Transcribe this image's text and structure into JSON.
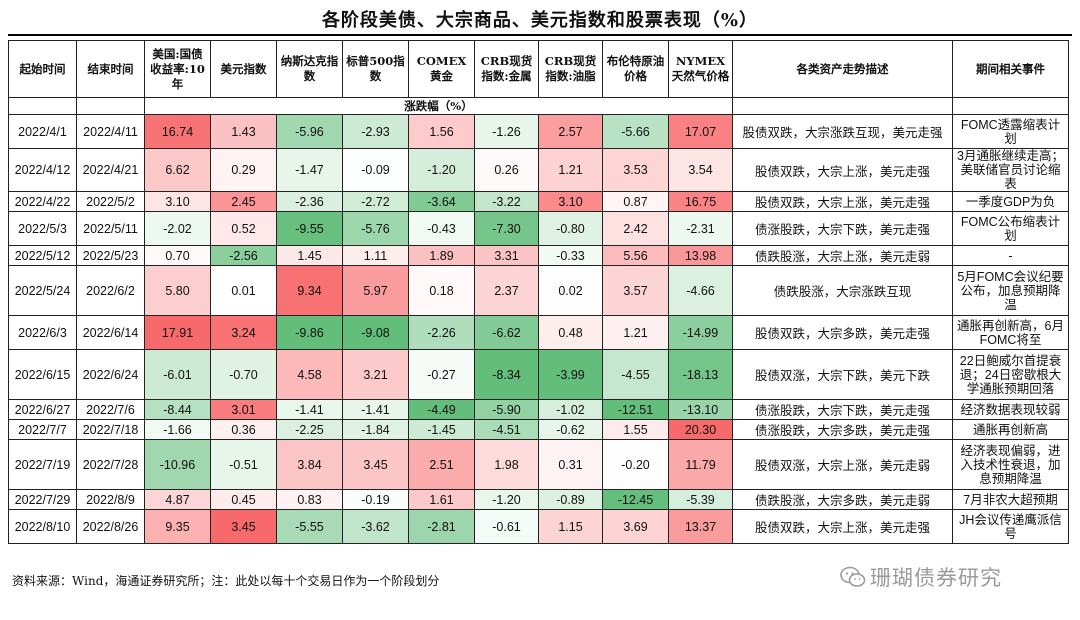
{
  "title": "各阶段美债、大宗商品、美元指数和股票表现（%）",
  "headers": [
    "起始时间",
    "结束时间",
    "美国:国债收益率:10年",
    "美元指数",
    "纳斯达克指数",
    "标普500指数",
    "COMEX黄金",
    "CRB现货指数:金属",
    "CRB现货指数:油脂",
    "布伦特原油价格",
    "NYMEX天然气价格",
    "各类资产走势描述",
    "期间相关事件"
  ],
  "unit_label": "涨跌幅（%）",
  "rows": [
    {
      "start": "2022/4/1",
      "end": "2022/4/11",
      "values": [
        "16.74",
        "1.43",
        "-5.96",
        "-2.93",
        "1.56",
        "-1.26",
        "2.57",
        "-5.66",
        "17.07"
      ],
      "desc": "股债双跌，大宗涨跌互现，美元走强",
      "event": "FOMC透露缩表计划"
    },
    {
      "start": "2022/4/12",
      "end": "2022/4/21",
      "values": [
        "6.62",
        "0.29",
        "-1.47",
        "-0.09",
        "-1.20",
        "0.26",
        "1.21",
        "3.53",
        "3.54"
      ],
      "desc": "股债双跌，大宗上涨，美元走强",
      "event": "3月通胀继续走高；美联储官员讨论缩表"
    },
    {
      "start": "2022/4/22",
      "end": "2022/5/2",
      "values": [
        "3.10",
        "2.45",
        "-2.36",
        "-2.72",
        "-3.64",
        "-3.22",
        "3.10",
        "0.87",
        "16.75"
      ],
      "desc": "股债双跌，大宗上涨，美元走强",
      "event": "一季度GDP为负"
    },
    {
      "start": "2022/5/3",
      "end": "2022/5/11",
      "values": [
        "-2.02",
        "0.52",
        "-9.55",
        "-5.76",
        "-0.43",
        "-7.30",
        "-0.80",
        "2.42",
        "-2.31"
      ],
      "desc": "债涨股跌，大宗下跌，美元走强",
      "event": "FOMC公布缩表计划"
    },
    {
      "start": "2022/5/12",
      "end": "2022/5/23",
      "values": [
        "0.70",
        "-2.56",
        "1.45",
        "1.11",
        "1.89",
        "3.31",
        "-0.33",
        "5.56",
        "13.98"
      ],
      "desc": "债跌股涨，大宗上涨，美元走弱",
      "event": "-"
    },
    {
      "start": "2022/5/24",
      "end": "2022/6/2",
      "values": [
        "5.80",
        "0.01",
        "9.34",
        "5.97",
        "0.18",
        "2.37",
        "0.02",
        "3.57",
        "-4.66"
      ],
      "desc": "债跌股涨，大宗涨跌互现",
      "event": "5月FOMC会议纪要公布，加息预期降温"
    },
    {
      "start": "2022/6/3",
      "end": "2022/6/14",
      "values": [
        "17.91",
        "3.24",
        "-9.86",
        "-9.08",
        "-2.26",
        "-6.62",
        "0.48",
        "1.21",
        "-14.99"
      ],
      "desc": "股债双跌，大宗多跌，美元走强",
      "event": "通胀再创新高，6月FOMC将至"
    },
    {
      "start": "2022/6/15",
      "end": "2022/6/24",
      "values": [
        "-6.01",
        "-0.70",
        "4.58",
        "3.21",
        "-0.27",
        "-8.34",
        "-3.99",
        "-4.55",
        "-18.13"
      ],
      "desc": "股债双涨，大宗下跌，美元下跌",
      "event": "22日鲍威尔首提衰退；24日密歇根大学通胀预期回落"
    },
    {
      "start": "2022/6/27",
      "end": "2022/7/6",
      "values": [
        "-8.44",
        "3.01",
        "-1.41",
        "-1.41",
        "-4.49",
        "-5.90",
        "-1.02",
        "-12.51",
        "-13.10"
      ],
      "desc": "债涨股跌，大宗下跌，美元走强",
      "event": "经济数据表现较弱"
    },
    {
      "start": "2022/7/7",
      "end": "2022/7/18",
      "values": [
        "-1.66",
        "0.36",
        "-2.25",
        "-1.84",
        "-1.45",
        "-4.51",
        "-0.62",
        "1.55",
        "20.30"
      ],
      "desc": "债涨股跌，大宗多跌，美元走强",
      "event": "通胀再创新高"
    },
    {
      "start": "2022/7/19",
      "end": "2022/7/28",
      "values": [
        "-10.96",
        "-0.51",
        "3.84",
        "3.45",
        "2.51",
        "1.98",
        "0.31",
        "-0.20",
        "11.79"
      ],
      "desc": "股债双涨，大宗上涨，美元走弱",
      "event": "经济表现偏弱，进入技术性衰退，加息预期降温"
    },
    {
      "start": "2022/7/29",
      "end": "2022/8/9",
      "values": [
        "4.87",
        "0.45",
        "0.83",
        "-0.19",
        "1.61",
        "-1.20",
        "-0.89",
        "-12.45",
        "-5.39"
      ],
      "desc": "债跌股涨，大宗多跌，美元走弱",
      "event": "7月非农大超预期"
    },
    {
      "start": "2022/8/10",
      "end": "2022/8/26",
      "values": [
        "9.35",
        "3.45",
        "-5.55",
        "-3.62",
        "-2.81",
        "-0.61",
        "1.15",
        "3.69",
        "13.37"
      ],
      "desc": "股债双跌，大宗上涨，美元走强",
      "event": "JH会议传递鹰派信号"
    }
  ],
  "footer": "资料来源：Wind，海通证券研究所；注：此处以每十个交易日作为一个阶段划分",
  "watermark": "珊瑚债券研究",
  "colors": {
    "positive": "#f8696b",
    "negative": "#63be7b",
    "neutral": "#ffffff"
  }
}
